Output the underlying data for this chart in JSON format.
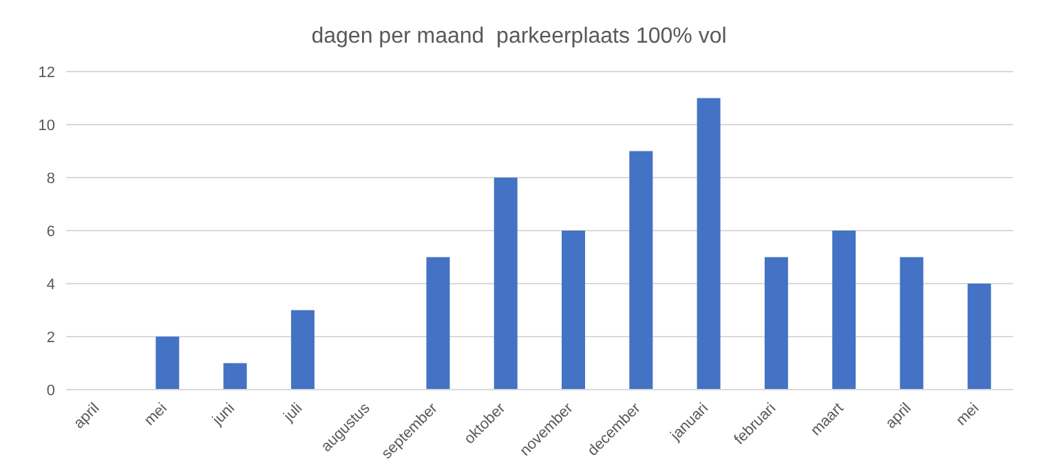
{
  "chart_data": {
    "type": "bar",
    "title": "dagen per maand  parkeerplaats 100% vol",
    "categories": [
      "april",
      "mei",
      "juni",
      "juli",
      "augustus",
      "september",
      "oktober",
      "november",
      "december",
      "januari",
      "februari",
      "maart",
      "april",
      "mei"
    ],
    "values": [
      0,
      2,
      1,
      3,
      0,
      5,
      8,
      6,
      9,
      11,
      5,
      6,
      5,
      4
    ],
    "color": "#4472c4",
    "ylim": [
      0,
      12
    ],
    "yticks": [
      0,
      2,
      4,
      6,
      8,
      10,
      12
    ],
    "grid": "y"
  }
}
